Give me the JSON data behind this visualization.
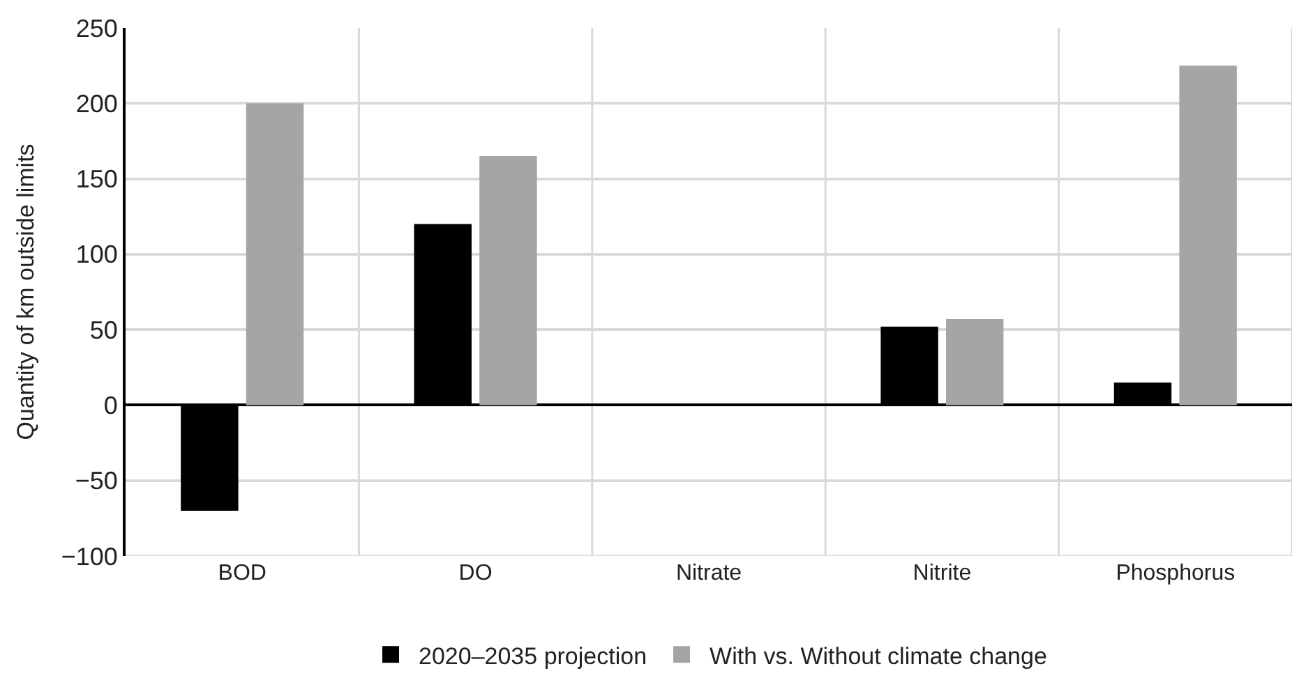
{
  "chart_data": {
    "type": "bar",
    "ylabel": "Quantity of km outside limits",
    "categories": [
      "BOD",
      "DO",
      "Nitrate",
      "Nitrite",
      "Phosphorus"
    ],
    "series": [
      {
        "name": "2020–2035 projection",
        "color": "#000000",
        "values": [
          -70,
          120,
          0,
          52,
          15
        ]
      },
      {
        "name": "With vs. Without climate change",
        "color": "#a5a5a5",
        "values": [
          200,
          165,
          0,
          57,
          225
        ]
      }
    ],
    "ylim": [
      -100,
      250
    ],
    "yticks": [
      {
        "value": -100,
        "label": "−100"
      },
      {
        "value": -50,
        "label": "−50"
      },
      0,
      50,
      100,
      150,
      200,
      250
    ],
    "grid": true,
    "legend": "bottom"
  }
}
